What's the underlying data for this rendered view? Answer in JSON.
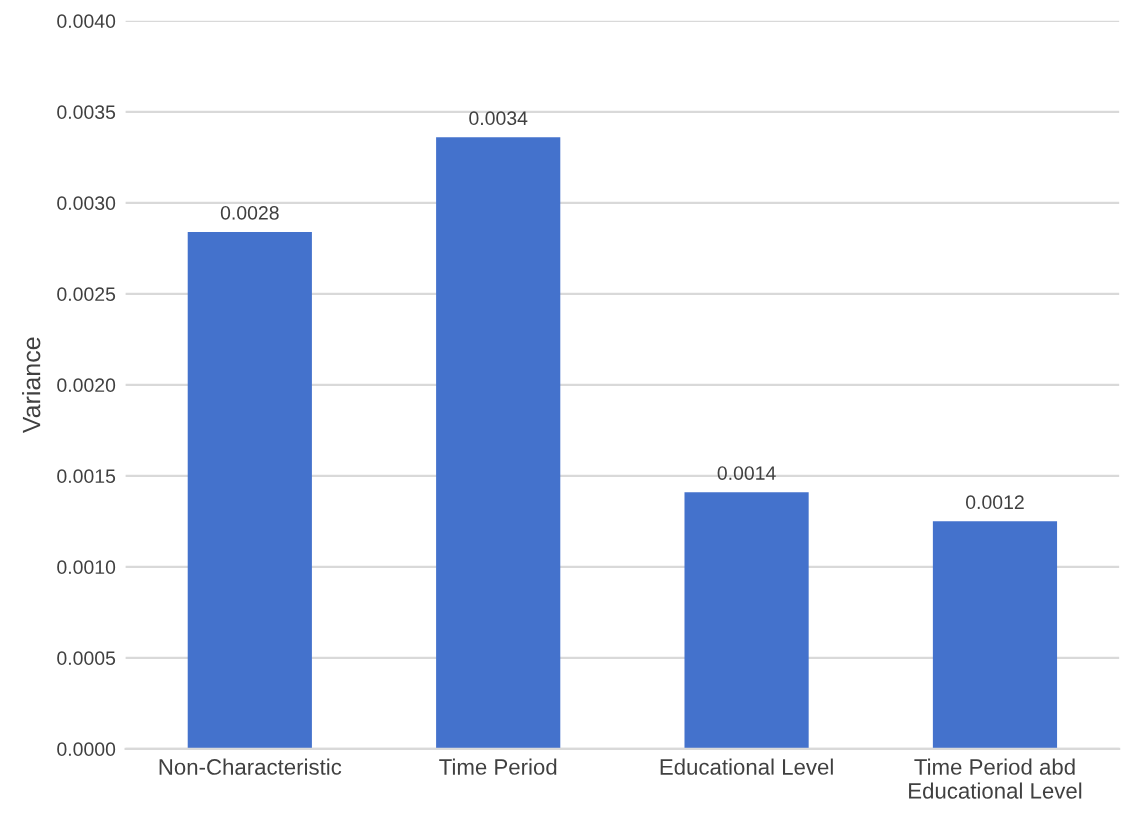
{
  "chart_data": {
    "type": "bar",
    "ylabel": "Variance",
    "categories": [
      "Non-Characteristic",
      "Time Period",
      "Educational Level",
      "Time Period abd\nEducational Level"
    ],
    "values": [
      0.00284,
      0.00336,
      0.00141,
      0.00125
    ],
    "value_labels": [
      "0.0028",
      "0.0034",
      "0.0014",
      "0.0012"
    ],
    "color": "#4472cc",
    "ylim": [
      0,
      0.004
    ],
    "yticks": [
      {
        "value": 0,
        "label": "0.0000"
      },
      {
        "value": 0.0005,
        "label": "0.0005"
      },
      {
        "value": 0.001,
        "label": "0.0010"
      },
      {
        "value": 0.0015,
        "label": "0.0015"
      },
      {
        "value": 0.002,
        "label": "0.0020"
      },
      {
        "value": 0.0025,
        "label": "0.0025"
      },
      {
        "value": 0.003,
        "label": "0.0030"
      },
      {
        "value": 0.0035,
        "label": "0.0035"
      },
      {
        "value": 0.004,
        "label": "0.0040"
      }
    ],
    "grid": "y"
  }
}
